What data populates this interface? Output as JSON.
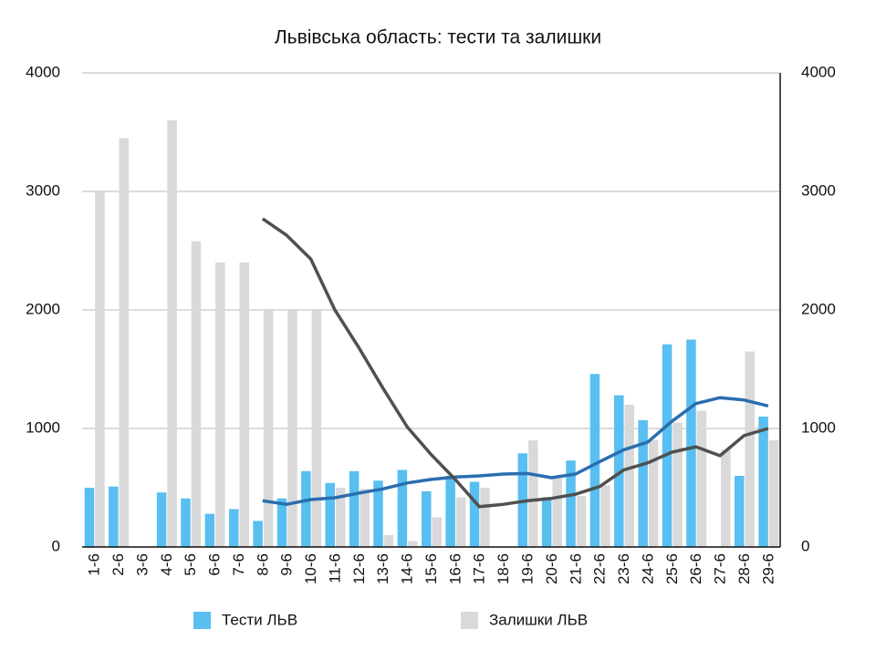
{
  "chart_data": {
    "type": "bar",
    "title": "Львівська область: тести та залишки",
    "categories": [
      "1-6",
      "2-6",
      "3-6",
      "4-6",
      "5-6",
      "6-6",
      "7-6",
      "8-6",
      "9-6",
      "10-6",
      "11-6",
      "12-6",
      "13-6",
      "14-6",
      "15-6",
      "16-6",
      "17-6",
      "18-6",
      "19-6",
      "20-6",
      "21-6",
      "22-6",
      "23-6",
      "24-6",
      "25-6",
      "26-6",
      "27-6",
      "28-6",
      "29-6"
    ],
    "series": [
      {
        "name": "Тести ЛЬВ",
        "type": "bar",
        "color": "#58bff0",
        "values": [
          500,
          510,
          0,
          460,
          410,
          280,
          320,
          220,
          410,
          640,
          540,
          640,
          560,
          650,
          470,
          600,
          550,
          0,
          790,
          420,
          730,
          1460,
          1280,
          1070,
          1710,
          1750,
          0,
          600,
          1100
        ]
      },
      {
        "name": "Залишки ЛЬВ",
        "type": "bar",
        "color": "#d9d9d9",
        "values": [
          3000,
          3450,
          0,
          3600,
          2580,
          2400,
          2400,
          2000,
          2000,
          2000,
          500,
          490,
          100,
          50,
          250,
          420,
          500,
          0,
          900,
          580,
          430,
          520,
          1200,
          900,
          1050,
          1150,
          820,
          1650,
          900
        ]
      },
      {
        "type": "line",
        "color": "#2a6db0",
        "values": [
          null,
          null,
          null,
          null,
          null,
          null,
          null,
          390,
          360,
          400,
          415,
          455,
          490,
          540,
          570,
          590,
          600,
          615,
          620,
          585,
          615,
          720,
          820,
          885,
          1060,
          1210,
          1260,
          1240,
          1190
        ]
      },
      {
        "type": "line",
        "color": "#505050",
        "values": [
          null,
          null,
          null,
          null,
          null,
          null,
          null,
          2770,
          2630,
          2430,
          2000,
          1680,
          1340,
          1015,
          780,
          570,
          340,
          360,
          390,
          410,
          445,
          510,
          650,
          710,
          800,
          845,
          770,
          940,
          1000
        ]
      }
    ],
    "ylim": [
      0,
      4000
    ],
    "yticks": [
      0,
      1000,
      2000,
      3000,
      4000
    ],
    "y2lim": [
      0,
      4000
    ],
    "y2ticks": [
      0,
      1000,
      2000,
      3000,
      4000
    ],
    "grid": true
  }
}
